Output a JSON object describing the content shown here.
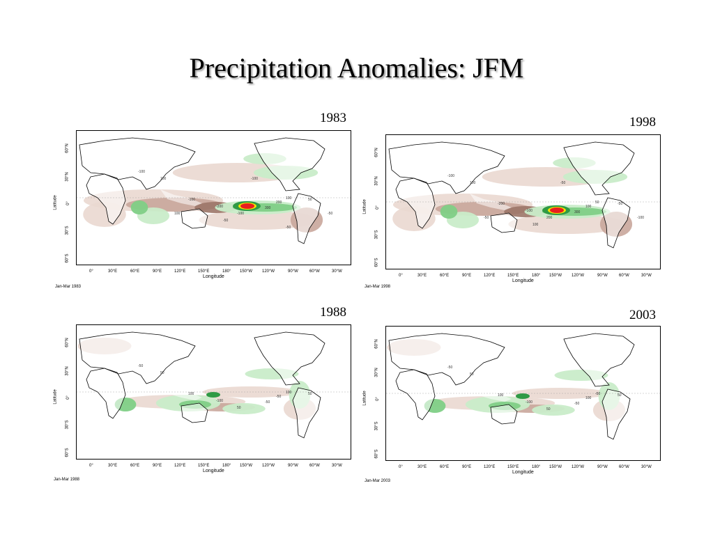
{
  "title": "Precipitation Anomalies: JFM",
  "axes": {
    "xlabel": "Longitude",
    "ylabel": "Latitude",
    "lon_ticks": [
      "0°",
      "30°E",
      "60°E",
      "90°E",
      "120°E",
      "150°E",
      "180°",
      "150°W",
      "120°W",
      "90°W",
      "60°W",
      "30°W"
    ],
    "lat_ticks": [
      "60°N",
      "30°N",
      "0°",
      "30°S",
      "60°S"
    ]
  },
  "legend_colors": {
    "wet_light": "#c9ecc9",
    "wet_mid": "#7fcf86",
    "wet_dark": "#2f9a45",
    "dry_light": "#ead8d0",
    "dry_mid": "#c9a69b",
    "dry_dark": "#9c7668",
    "extreme_wet_core": "#e81e1e",
    "extreme_wet_rim": "#f2e300"
  },
  "panels": [
    {
      "year": "1983",
      "caption": "Jan-Mar 1983",
      "contour_labels": [
        "-100",
        "100",
        "-100",
        "-200",
        "-100",
        "300",
        "200",
        "100",
        "50",
        "-50",
        "-100",
        "-50",
        "100",
        "-50"
      ],
      "enso_core": "strong"
    },
    {
      "year": "1998",
      "caption": "Jan-Mar 1998",
      "contour_labels": [
        "-100",
        "100",
        "-200",
        "-100",
        "200",
        "300",
        "100",
        "50",
        "-50",
        "-100",
        "-50",
        "100",
        "-50"
      ],
      "enso_core": "strong"
    },
    {
      "year": "1988",
      "caption": "Jan-Mar 1988",
      "contour_labels": [
        "-50",
        "50",
        "100",
        "-100",
        "50",
        "-50",
        "-50",
        "100",
        "50"
      ],
      "enso_core": "weak"
    },
    {
      "year": "2003",
      "caption": "Jan-Mar 2003",
      "contour_labels": [
        "-50",
        "50",
        "100",
        "-100",
        "50",
        "-50",
        "100",
        "-50",
        "50"
      ],
      "enso_core": "weak"
    }
  ]
}
